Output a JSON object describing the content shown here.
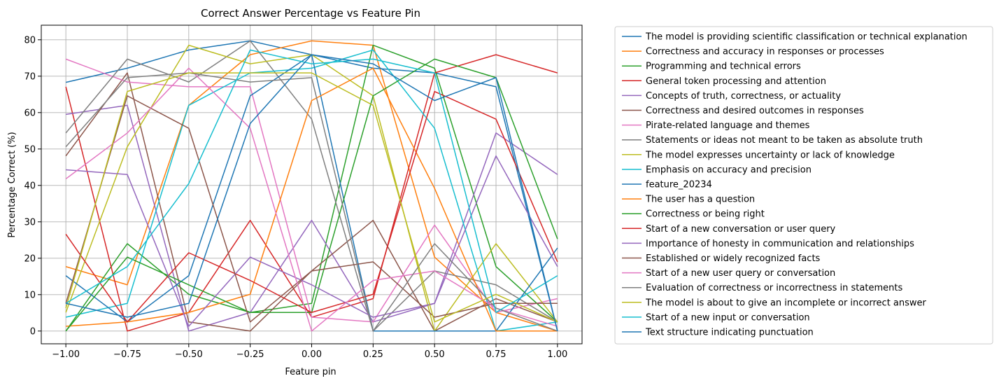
{
  "chart_data": {
    "type": "line",
    "title": "Correct Answer Percentage vs Feature Pin",
    "xlabel": "Feature pin",
    "ylabel": "Percentage Correct (%)",
    "x": [
      -1.0,
      -0.75,
      -0.5,
      -0.25,
      0.0,
      0.25,
      0.5,
      0.75,
      1.0
    ],
    "xlim": [
      -1.1,
      1.1
    ],
    "ylim": [
      -3.5,
      84
    ],
    "xticks": [
      -1.0,
      -0.75,
      -0.5,
      -0.25,
      0.0,
      0.25,
      0.5,
      0.75,
      1.0
    ],
    "xtick_labels": [
      "−1.00",
      "−0.75",
      "−0.50",
      "−0.25",
      "0.00",
      "0.25",
      "0.50",
      "0.75",
      "1.00"
    ],
    "yticks": [
      0,
      10,
      20,
      30,
      40,
      50,
      60,
      70,
      80
    ],
    "ytick_labels": [
      "0",
      "10",
      "20",
      "30",
      "40",
      "50",
      "60",
      "70",
      "80"
    ],
    "grid": true,
    "legend_position": "outside-right",
    "series": [
      {
        "name": "The model is providing scientific classification or technical explanation",
        "color": "#1f77b4",
        "values": [
          68.3,
          72.2,
          77.2,
          79.7,
          75.9,
          72.2,
          70.9,
          67.1,
          0.0
        ]
      },
      {
        "name": "Correctness and accuracy in responses or processes",
        "color": "#ff7f0e",
        "values": [
          17.7,
          12.7,
          62.0,
          75.9,
          79.7,
          78.5,
          20.3,
          5.1,
          0.0
        ]
      },
      {
        "name": "Programming and technical errors",
        "color": "#2ca02c",
        "values": [
          0.0,
          24.0,
          10.1,
          5.1,
          7.6,
          78.5,
          72.2,
          17.7,
          2.5
        ]
      },
      {
        "name": "General token processing and attention",
        "color": "#d62728",
        "values": [
          67.1,
          0.0,
          5.1,
          30.4,
          3.8,
          8.9,
          70.9,
          75.9,
          70.9
        ]
      },
      {
        "name": "Concepts of truth, correctness, or actuality",
        "color": "#9467bd",
        "values": [
          59.5,
          62.0,
          0.0,
          5.1,
          30.4,
          2.5,
          7.6,
          54.4,
          43.0
        ]
      },
      {
        "name": "Correctness and desired outcomes in responses",
        "color": "#8c564b",
        "values": [
          48.1,
          70.9,
          2.5,
          0.0,
          16.5,
          30.4,
          0.0,
          8.9,
          2.5
        ]
      },
      {
        "name": "Pirate-related language and themes",
        "color": "#e377c2",
        "values": [
          74.7,
          68.4,
          67.1,
          67.1,
          3.8,
          2.5,
          29.1,
          5.1,
          8.9
        ]
      },
      {
        "name": "Statements or ideas not meant to be taken as absolute truth",
        "color": "#7f7f7f",
        "values": [
          54.4,
          74.7,
          68.4,
          79.7,
          58.2,
          0.0,
          16.5,
          12.7,
          2.5
        ]
      },
      {
        "name": "The model expresses uncertainty or lack of knowledge",
        "color": "#bcbd22",
        "values": [
          5.1,
          50.6,
          78.5,
          73.4,
          75.9,
          64.6,
          0.0,
          24.0,
          2.5
        ]
      },
      {
        "name": "Emphasis on accuracy and precision",
        "color": "#17becf",
        "values": [
          3.8,
          7.6,
          62.0,
          70.9,
          72.2,
          77.2,
          55.7,
          0.0,
          2.5
        ]
      },
      {
        "name": "feature_20234",
        "color": "#1f77b4",
        "values": [
          15.2,
          2.5,
          15.2,
          64.6,
          75.9,
          0.0,
          0.0,
          0.0,
          22.8
        ]
      },
      {
        "name": "The user has a question",
        "color": "#ff7f0e",
        "values": [
          1.3,
          2.5,
          5.1,
          10.1,
          63.3,
          72.2,
          39.2,
          0.0,
          0.0
        ]
      },
      {
        "name": "Correctness or being right",
        "color": "#2ca02c",
        "values": [
          0.0,
          20.3,
          12.7,
          5.1,
          5.1,
          64.6,
          74.7,
          69.6,
          25.3
        ]
      },
      {
        "name": "Start of a new conversation or user query",
        "color": "#d62728",
        "values": [
          26.6,
          2.5,
          21.5,
          13.9,
          5.1,
          10.1,
          65.8,
          58.2,
          19.0
        ]
      },
      {
        "name": "Importance of honesty in communication and relationships",
        "color": "#9467bd",
        "values": [
          44.3,
          43.0,
          1.3,
          20.3,
          12.7,
          3.8,
          7.6,
          48.1,
          17.7
        ]
      },
      {
        "name": "Established or widely recognized facts",
        "color": "#8c564b",
        "values": [
          7.6,
          64.6,
          55.7,
          2.5,
          16.5,
          19.0,
          3.8,
          7.6,
          7.6
        ]
      },
      {
        "name": "Start of a new user query or conversation",
        "color": "#e377c2",
        "values": [
          41.8,
          54.4,
          72.2,
          55.7,
          0.0,
          13.9,
          16.5,
          6.3,
          1.3
        ]
      },
      {
        "name": "Evaluation of correctness or incorrectness in statements",
        "color": "#7f7f7f",
        "values": [
          50.6,
          69.6,
          70.9,
          68.4,
          69.6,
          0.0,
          24.0,
          6.3,
          0.0
        ]
      },
      {
        "name": "The model is about to give an incomplete or incorrect answer",
        "color": "#bcbd22",
        "values": [
          6.3,
          65.8,
          70.9,
          70.9,
          70.9,
          62.0,
          2.5,
          10.1,
          2.5
        ]
      },
      {
        "name": "Start of a new input or conversation",
        "color": "#17becf",
        "values": [
          7.6,
          17.7,
          40.5,
          77.2,
          73.4,
          74.7,
          70.9,
          5.1,
          15.2
        ]
      },
      {
        "name": "Text structure indicating punctuation",
        "color": "#1f77b4",
        "values": [
          7.6,
          3.8,
          7.6,
          57.0,
          75.9,
          73.4,
          63.3,
          69.6,
          0.0
        ]
      }
    ]
  }
}
